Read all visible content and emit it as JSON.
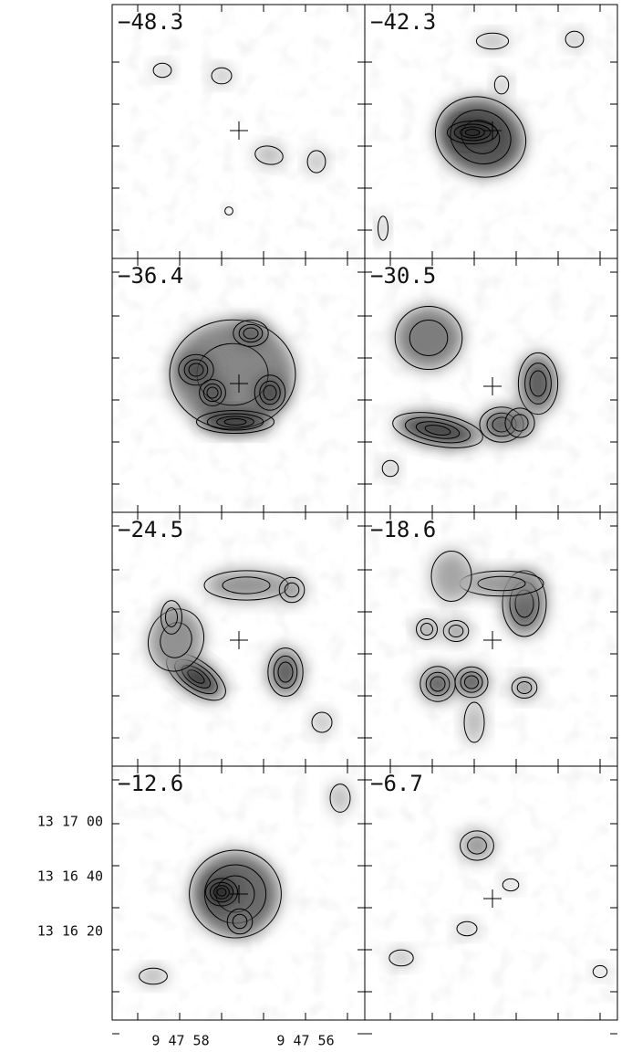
{
  "panels": [
    {
      "label": "−48.3"
    },
    {
      "label": "−42.3"
    },
    {
      "label": "−36.4"
    },
    {
      "label": "−30.5"
    },
    {
      "label": "−24.5"
    },
    {
      "label": "−18.6"
    },
    {
      "label": "−12.6"
    },
    {
      "label": "−6.7"
    }
  ],
  "y_axis": {
    "ticks": [
      "13 17 00",
      "13 16 40",
      "13 16 20"
    ]
  },
  "x_axis": {
    "ticks": [
      "9 47 58",
      "9 47 56"
    ]
  }
}
